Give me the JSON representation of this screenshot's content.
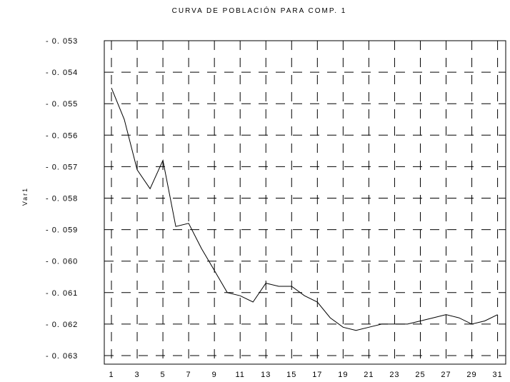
{
  "chart_data": {
    "type": "line",
    "title": "CURVA DE POBLACIÓN PARA COMP. 1",
    "xlabel": "",
    "ylabel": "Var1",
    "xlim": [
      1,
      31
    ],
    "ylim": [
      -0.063,
      -0.053
    ],
    "grid": true,
    "y_ticks": [
      "- 0. 053",
      "- 0. 054",
      "- 0. 055",
      "- 0. 056",
      "- 0. 057",
      "- 0. 058",
      "- 0. 059",
      "- 0. 060",
      "- 0. 061",
      "- 0. 062",
      "- 0. 063"
    ],
    "x_ticks": [
      "1",
      "3",
      "5",
      "7",
      "9",
      "11",
      "13",
      "15",
      "17",
      "19",
      "21",
      "23",
      "25",
      "27",
      "29",
      "31"
    ],
    "series": [
      {
        "x": [
          1,
          2,
          3,
          4,
          5,
          6,
          7,
          8,
          9,
          10,
          11,
          12,
          13,
          14,
          15,
          16,
          17,
          18,
          19,
          20,
          21,
          22,
          23,
          24,
          25,
          26,
          27,
          28,
          29,
          30,
          31
        ],
        "values": [
          -0.0545,
          -0.0555,
          -0.0571,
          -0.0577,
          -0.0568,
          -0.0589,
          -0.0588,
          -0.0596,
          -0.0603,
          -0.061,
          -0.0611,
          -0.0613,
          -0.0607,
          -0.0608,
          -0.0608,
          -0.0611,
          -0.0613,
          -0.0618,
          -0.0621,
          -0.0622,
          -0.0621,
          -0.062,
          -0.062,
          -0.062,
          -0.0619,
          -0.0618,
          -0.0617,
          -0.0618,
          -0.062,
          -0.0619,
          -0.0617
        ]
      }
    ]
  }
}
